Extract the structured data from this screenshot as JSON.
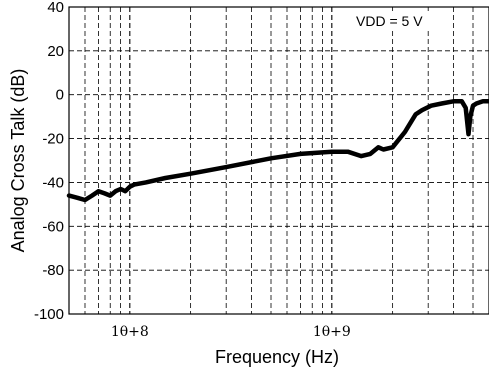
{
  "chart_data": {
    "type": "line",
    "title": "",
    "xlabel": "Frequency (Hz)",
    "ylabel": "Analog Cross Talk (dB)",
    "xscale": "log",
    "xlim": [
      50000000,
      6000000000
    ],
    "ylim": [
      -100,
      40
    ],
    "y_ticks": [
      40,
      20,
      0,
      -20,
      -40,
      -60,
      -80,
      -100
    ],
    "y_tick_labels": [
      "40",
      "20",
      "0",
      "-20",
      "-40",
      "-60",
      "-80",
      "-100"
    ],
    "x_ticks": [
      100000000,
      1000000000
    ],
    "x_tick_labels": [
      "1θ+8",
      "1θ+9"
    ],
    "grid": true,
    "annotation": "VDD = 5 V",
    "line_color": "#000000",
    "series": [
      {
        "x": [
          50000000,
          55000000,
          60000000,
          65000000,
          70000000,
          75000000,
          80000000,
          85000000,
          90000000,
          95000000,
          100000000,
          105000000,
          120000000,
          150000000,
          200000000,
          300000000,
          500000000,
          700000000,
          1000000000,
          1200000000,
          1400000000,
          1550000000,
          1700000000,
          1800000000,
          2000000000,
          2300000000,
          2600000000,
          2800000000,
          3100000000,
          3500000000,
          4000000000,
          4400000000,
          4600000000,
          4750000000,
          4850000000,
          5000000000,
          5200000000,
          5600000000,
          6000000000
        ],
        "y": [
          -46,
          -47,
          -48,
          -46,
          -44,
          -45,
          -46,
          -44,
          -43,
          -44,
          -42,
          -41,
          -40,
          -38,
          -36,
          -33,
          -29,
          -27,
          -26,
          -26,
          -28,
          -27,
          -24,
          -25,
          -24,
          -17,
          -9,
          -7,
          -5,
          -4,
          -3,
          -3,
          -6,
          -18,
          -10,
          -5,
          -4,
          -3,
          -3
        ]
      }
    ]
  }
}
